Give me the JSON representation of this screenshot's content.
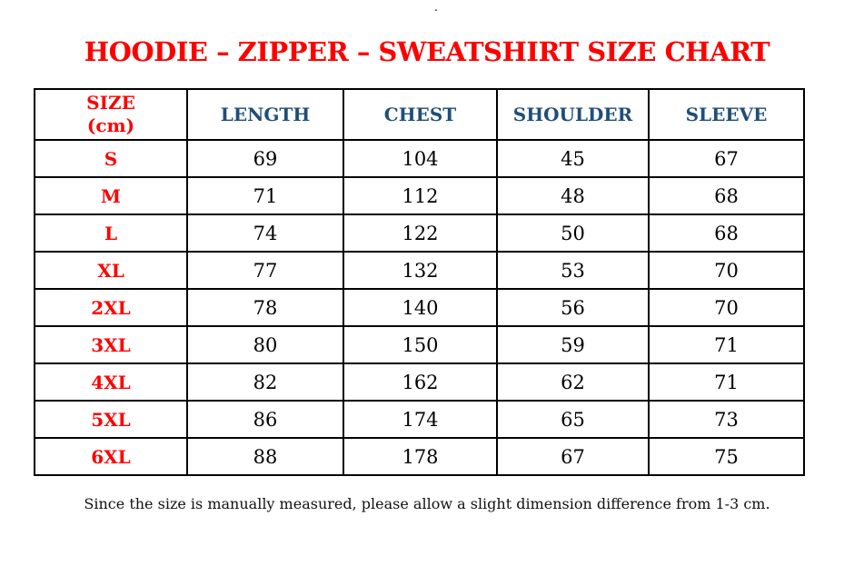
{
  "stray_dot": ".",
  "title": "HOODIE – ZIPPER – SWEATSHIRT SIZE CHART",
  "table": {
    "size_header": {
      "line1": "SIZE",
      "line2": "(cm)"
    },
    "columns": [
      "LENGTH",
      "CHEST",
      "SHOULDER",
      "SLEEVE"
    ],
    "rows": [
      {
        "size": "S",
        "values": [
          "69",
          "104",
          "45",
          "67"
        ]
      },
      {
        "size": "M",
        "values": [
          "71",
          "112",
          "48",
          "68"
        ]
      },
      {
        "size": "L",
        "values": [
          "74",
          "122",
          "50",
          "68"
        ]
      },
      {
        "size": "XL",
        "values": [
          "77",
          "132",
          "53",
          "70"
        ]
      },
      {
        "size": "2XL",
        "values": [
          "78",
          "140",
          "56",
          "70"
        ]
      },
      {
        "size": "3XL",
        "values": [
          "80",
          "150",
          "59",
          "71"
        ]
      },
      {
        "size": "4XL",
        "values": [
          "82",
          "162",
          "62",
          "71"
        ]
      },
      {
        "size": "5XL",
        "values": [
          "86",
          "174",
          "65",
          "73"
        ]
      },
      {
        "size": "6XL",
        "values": [
          "88",
          "178",
          "67",
          "75"
        ]
      }
    ]
  },
  "footer_note": "Since the size is manually measured, please allow a slight dimension difference from 1-3 cm.",
  "colors": {
    "title_red": "#ff0000",
    "header_blue": "#1f4e79",
    "value_black": "#000000",
    "border_black": "#000000",
    "background": "#ffffff"
  },
  "chart_data": {
    "type": "table",
    "title": "HOODIE – ZIPPER – SWEATSHIRT SIZE CHART",
    "unit": "cm",
    "columns": [
      "SIZE (cm)",
      "LENGTH",
      "CHEST",
      "SHOULDER",
      "SLEEVE"
    ],
    "rows": [
      [
        "S",
        69,
        104,
        45,
        67
      ],
      [
        "M",
        71,
        112,
        48,
        68
      ],
      [
        "L",
        74,
        122,
        50,
        68
      ],
      [
        "XL",
        77,
        132,
        53,
        70
      ],
      [
        "2XL",
        78,
        140,
        56,
        70
      ],
      [
        "3XL",
        80,
        150,
        59,
        71
      ],
      [
        "4XL",
        82,
        162,
        62,
        71
      ],
      [
        "5XL",
        86,
        174,
        65,
        73
      ],
      [
        "6XL",
        88,
        178,
        67,
        75
      ]
    ],
    "footnote": "Since the size is manually measured, please allow a slight dimension difference from 1-3 cm."
  }
}
